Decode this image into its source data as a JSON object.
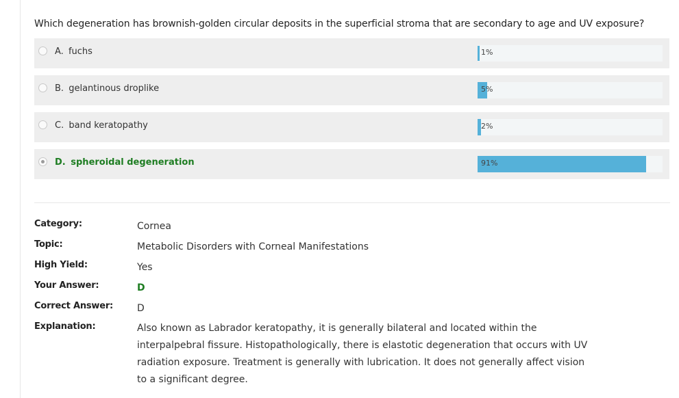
{
  "question": "Which degeneration has brownish-golden circular deposits in the superficial stroma that are secondary to age and UV exposure?",
  "options": [
    {
      "letter": "A.",
      "text": "fuchs",
      "percent_label": "1%",
      "percent": 1,
      "selected": false,
      "correct": false
    },
    {
      "letter": "B.",
      "text": "gelantinous droplike",
      "percent_label": "5%",
      "percent": 5,
      "selected": false,
      "correct": false
    },
    {
      "letter": "C.",
      "text": "band keratopathy",
      "percent_label": "2%",
      "percent": 2,
      "selected": false,
      "correct": false
    },
    {
      "letter": "D.",
      "text": "spheroidal degeneration",
      "percent_label": "91%",
      "percent": 91,
      "selected": true,
      "correct": true
    }
  ],
  "details": {
    "category_label": "Category:",
    "category": "Cornea",
    "topic_label": "Topic:",
    "topic": "Metabolic Disorders with Corneal Manifestations",
    "high_yield_label": "High Yield:",
    "high_yield": "Yes",
    "your_answer_label": "Your Answer:",
    "your_answer": "D",
    "correct_answer_label": "Correct Answer:",
    "correct_answer": "D",
    "explanation_label": "Explanation:",
    "explanation": "Also known as Labrador keratopathy, it is generally bilateral and located within the interpalpebral fissure. Histopathologically, there is elastotic degeneration that occurs with UV radiation exposure. Treatment is generally with lubrication. It does not generally affect vision to a significant degree."
  },
  "colors": {
    "bar_fill": "#55b1d9",
    "correct_green": "#1e7d22",
    "option_bg": "#eeeeee"
  }
}
